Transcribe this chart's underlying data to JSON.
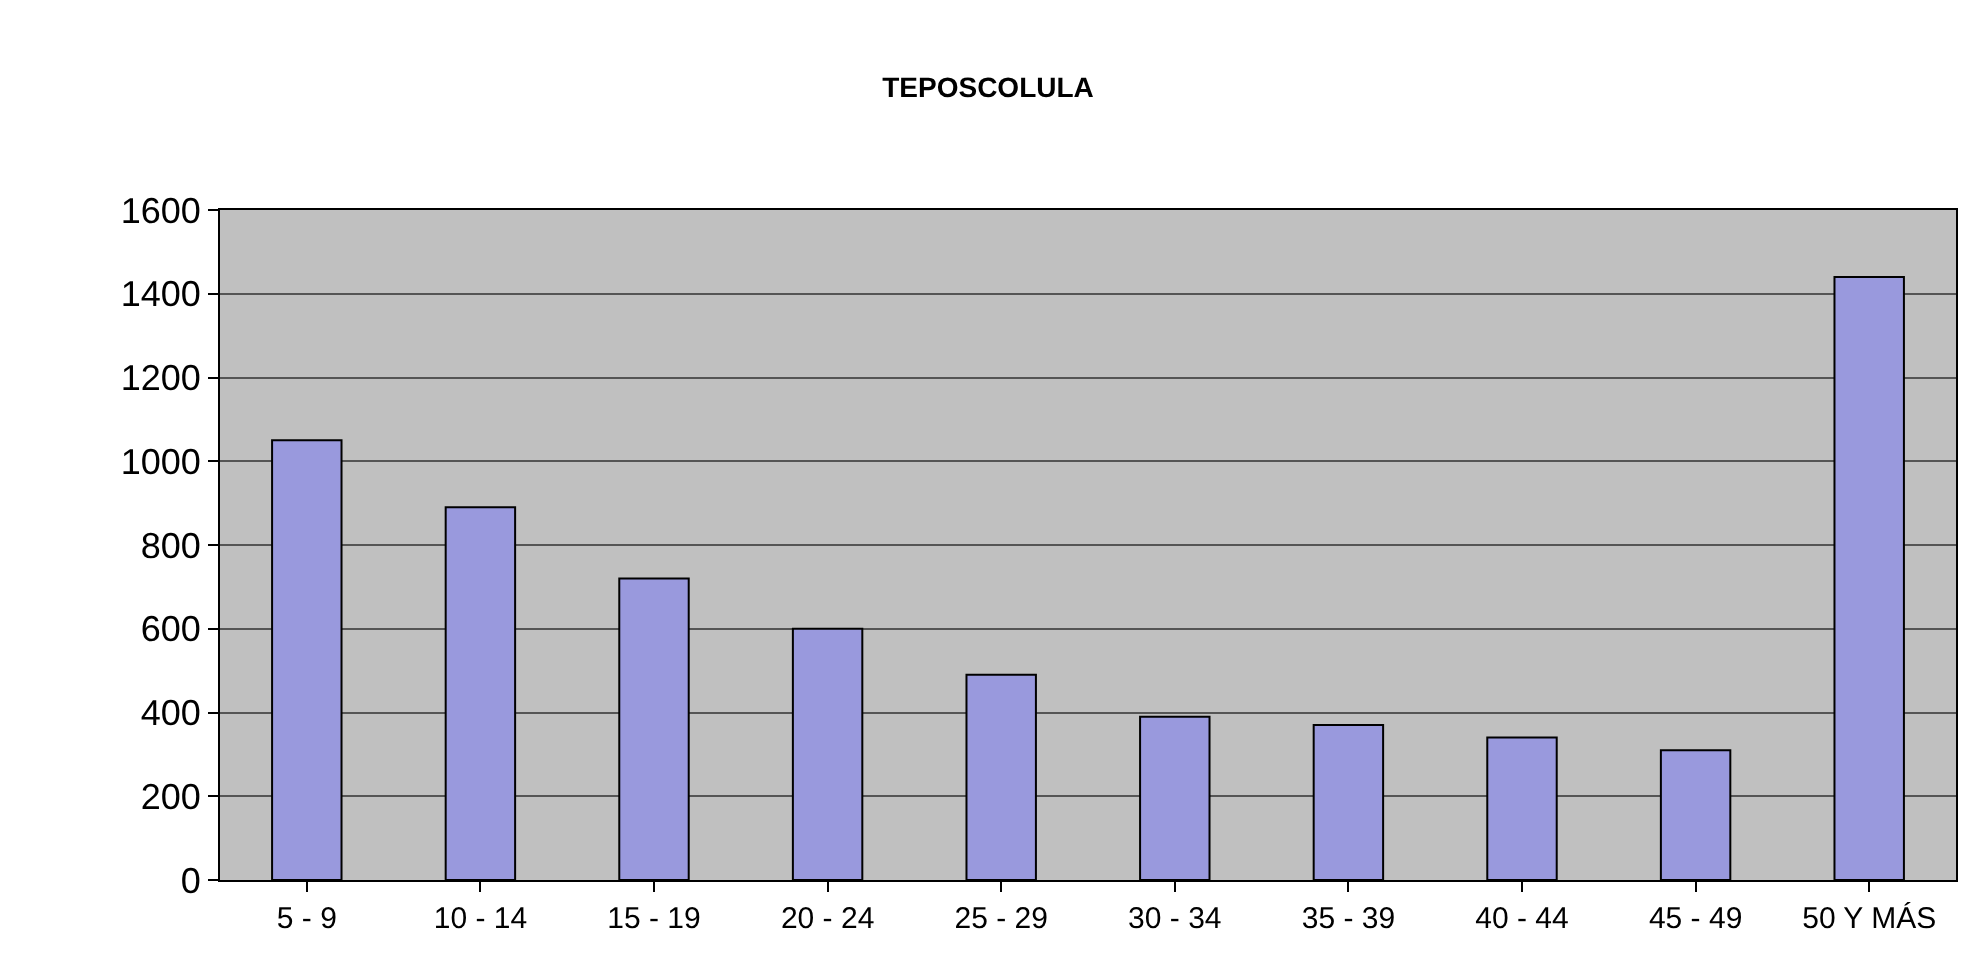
{
  "chart_data": {
    "type": "bar",
    "title": "TEPOSCOLULA",
    "categories": [
      "5 - 9",
      "10 - 14",
      "15 - 19",
      "20 - 24",
      "25 - 29",
      "30 - 34",
      "35 - 39",
      "40 - 44",
      "45 - 49",
      "50 Y MÁS"
    ],
    "values": [
      1050,
      890,
      720,
      600,
      490,
      390,
      370,
      340,
      310,
      1440
    ],
    "color": "#9999dd",
    "ylim": [
      0,
      1600
    ],
    "yticks": [
      0,
      200,
      400,
      600,
      800,
      1000,
      1200,
      1400,
      1600
    ],
    "grid": "y",
    "legend": false
  }
}
